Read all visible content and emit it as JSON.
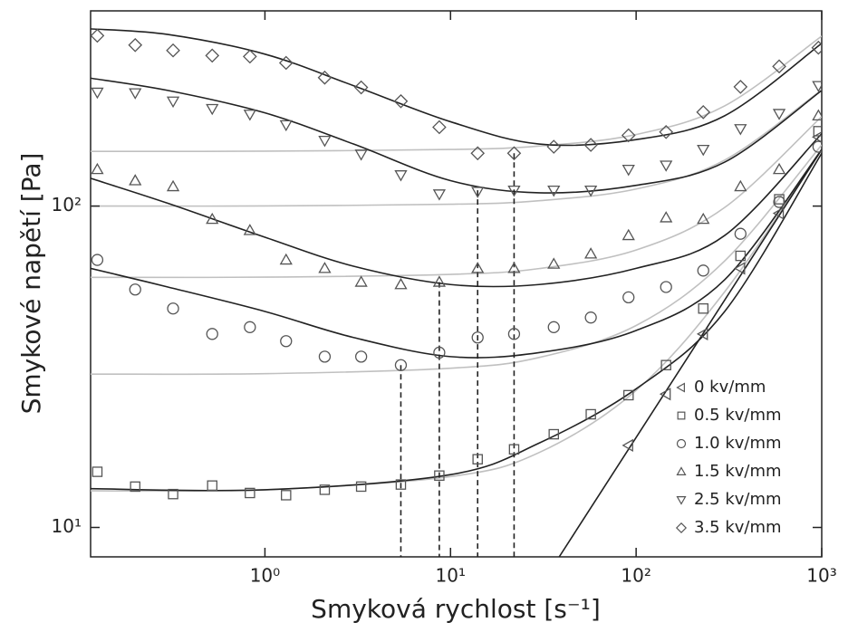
{
  "chart_data": {
    "type": "scatter",
    "xlabel": "Smyková rychlost [s⁻¹]",
    "ylabel": "Smykové napětí [Pa]",
    "xscale": "log",
    "yscale": "log",
    "xlim": [
      0.115,
      1000
    ],
    "ylim": [
      8.1,
      405
    ],
    "xticks": [
      {
        "value": 1,
        "label": "10⁰"
      },
      {
        "value": 10,
        "label": "10¹"
      },
      {
        "value": 100,
        "label": "10²"
      },
      {
        "value": 1000,
        "label": "10³"
      }
    ],
    "yticks": [
      {
        "value": 10,
        "label": "10¹"
      },
      {
        "value": 100,
        "label": "10²"
      }
    ],
    "legend": "lower right",
    "x": [
      0.125,
      0.2,
      0.32,
      0.52,
      0.83,
      1.3,
      2.1,
      3.3,
      5.4,
      8.7,
      14,
      22,
      36,
      57,
      91,
      145,
      230,
      365,
      590,
      960
    ],
    "series": [
      {
        "name": "0 kv/mm",
        "marker": "triangle-left",
        "color": "#555555",
        "values": [
          null,
          null,
          null,
          null,
          null,
          null,
          null,
          null,
          null,
          null,
          null,
          null,
          null,
          null,
          18,
          26,
          40,
          64,
          95,
          164
        ]
      },
      {
        "name": "0.5 kv/mm",
        "marker": "square",
        "color": "#555555",
        "values": [
          14.9,
          13.4,
          12.7,
          13.5,
          12.8,
          12.6,
          13.1,
          13.4,
          13.6,
          14.5,
          16.3,
          17.5,
          19.5,
          22.5,
          25.8,
          32,
          48,
          70,
          105,
          171
        ]
      },
      {
        "name": "1.0 kv/mm",
        "marker": "circle",
        "color": "#555555",
        "values": [
          68,
          55,
          48,
          40,
          42,
          38,
          34,
          34,
          32,
          35,
          39,
          40,
          42,
          45,
          52,
          56,
          63,
          82,
          103,
          153
        ]
      },
      {
        "name": "1.5 kv/mm",
        "marker": "triangle-up",
        "color": "#555555",
        "values": [
          130,
          120,
          115,
          91,
          84,
          68,
          64,
          58,
          57,
          58,
          64,
          64,
          66,
          71,
          81,
          92,
          91,
          115,
          130,
          191
        ]
      },
      {
        "name": "2.5 kv/mm",
        "marker": "triangle-down",
        "color": "#555555",
        "values": [
          226,
          225,
          212,
          201,
          193,
          179,
          160,
          145,
          125,
          109,
          111,
          112,
          112,
          112,
          130,
          134,
          150,
          174,
          194,
          237
        ]
      },
      {
        "name": "3.5 kv/mm",
        "marker": "diamond",
        "color": "#555555",
        "values": [
          339,
          317,
          305,
          294,
          292,
          279,
          251,
          234,
          212,
          176,
          146,
          146,
          153,
          155,
          166,
          170,
          196,
          235,
          272,
          311
        ]
      }
    ],
    "lines": [
      {
        "color": "#c0c0c0",
        "x": [
          0.115,
          1,
          10,
          30,
          100,
          300,
          1000
        ],
        "values": [
          13,
          13.1,
          14.4,
          17.1,
          26.7,
          54.1,
          150
        ]
      },
      {
        "color": "#c0c0c0",
        "x": [
          0.115,
          1,
          10,
          30,
          100,
          300,
          1000
        ],
        "values": [
          30,
          30.1,
          31.3,
          33.8,
          42.5,
          67.5,
          155
        ]
      },
      {
        "color": "#c0c0c0",
        "x": [
          0.115,
          1,
          10,
          30,
          100,
          300,
          1000
        ],
        "values": [
          60,
          60.1,
          61.3,
          63.9,
          73,
          99,
          190
        ]
      },
      {
        "color": "#c0c0c0",
        "x": [
          0.115,
          1,
          10,
          30,
          100,
          300,
          1000
        ],
        "values": [
          100,
          100.1,
          101.3,
          103.9,
          113,
          139,
          230
        ]
      },
      {
        "color": "#c0c0c0",
        "x": [
          0.115,
          1,
          10,
          30,
          100,
          300,
          1000
        ],
        "values": [
          148,
          148.2,
          150,
          153.7,
          167,
          205,
          338
        ]
      },
      {
        "color": "#222222",
        "x": [
          38.5,
          1000
        ],
        "values": [
          8.1,
          150
        ]
      },
      {
        "color": "#222222",
        "x": [
          0.115,
          1,
          10,
          30,
          100,
          300,
          1000
        ],
        "values": [
          13.2,
          13.1,
          14.6,
          18.3,
          27,
          47,
          146
        ]
      },
      {
        "color": "#222222",
        "x": [
          0.115,
          0.3,
          1,
          3,
          10,
          30,
          100,
          300,
          1000
        ],
        "values": [
          64,
          56,
          47,
          39,
          34,
          35,
          41,
          59,
          150
        ]
      },
      {
        "color": "#222222",
        "x": [
          0.115,
          0.3,
          1,
          3,
          10,
          30,
          100,
          300,
          1000
        ],
        "values": [
          122,
          102,
          80,
          65,
          57,
          57,
          64,
          81,
          168
        ]
      },
      {
        "color": "#222222",
        "x": [
          0.115,
          0.3,
          1,
          3,
          10,
          30,
          100,
          300,
          1000
        ],
        "values": [
          250,
          229,
          195,
          156,
          120,
          110,
          116,
          137,
          229
        ]
      },
      {
        "color": "#222222",
        "x": [
          0.115,
          0.3,
          1,
          3,
          10,
          30,
          100,
          300,
          1000
        ],
        "values": [
          356,
          342,
          297,
          237,
          183,
          156,
          161,
          191,
          321
        ]
      }
    ],
    "droplines": [
      {
        "x": 5.4,
        "value": 32
      },
      {
        "x": 8.7,
        "value": 58
      },
      {
        "x": 14,
        "value": 112
      },
      {
        "x": 22,
        "value": 146
      }
    ]
  }
}
